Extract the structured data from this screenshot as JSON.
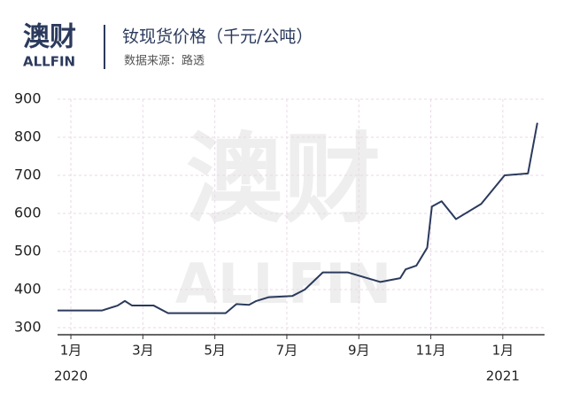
{
  "header": {
    "logo": "澳财",
    "logo_sub": "ALLFIN"
  },
  "watermark": {
    "main": "澳财",
    "sub": "ALLFIN"
  },
  "chart_data": {
    "type": "line",
    "title": "钕现货价格（千元/公吨）",
    "subtitle": "数据来源：路透",
    "x": [
      0.63,
      1.86,
      2.3,
      2.5,
      2.7,
      3.3,
      3.7,
      5.3,
      5.6,
      5.95,
      6.15,
      6.5,
      7.15,
      7.5,
      8.0,
      8.7,
      9.6,
      10.15,
      10.3,
      10.6,
      10.9,
      11.03,
      11.3,
      11.7,
      12.4,
      13.05,
      13.7,
      13.96
    ],
    "series": [
      {
        "color": "#2b3a5c",
        "values": [
          345,
          345,
          358,
          370,
          358,
          358,
          338,
          338,
          362,
          360,
          370,
          380,
          383,
          400,
          445,
          445,
          420,
          430,
          453,
          463,
          510,
          618,
          632,
          585,
          625,
          700,
          705,
          838
        ]
      }
    ],
    "xlim": [
      0.63,
      14.16
    ],
    "xticks": [
      {
        "value": 1,
        "label": "1月"
      },
      {
        "value": 3,
        "label": "3月"
      },
      {
        "value": 5,
        "label": "5月"
      },
      {
        "value": 7,
        "label": "7月"
      },
      {
        "value": 9,
        "label": "9月"
      },
      {
        "value": 11,
        "label": "11月"
      },
      {
        "value": 13,
        "label": "1月"
      }
    ],
    "year_labels": [
      {
        "value": 1,
        "label": "2020"
      },
      {
        "value": 13,
        "label": "2021"
      }
    ],
    "ylim": [
      300,
      900
    ],
    "yticks": [
      300,
      400,
      500,
      600,
      700,
      800,
      900
    ],
    "grid": true
  }
}
